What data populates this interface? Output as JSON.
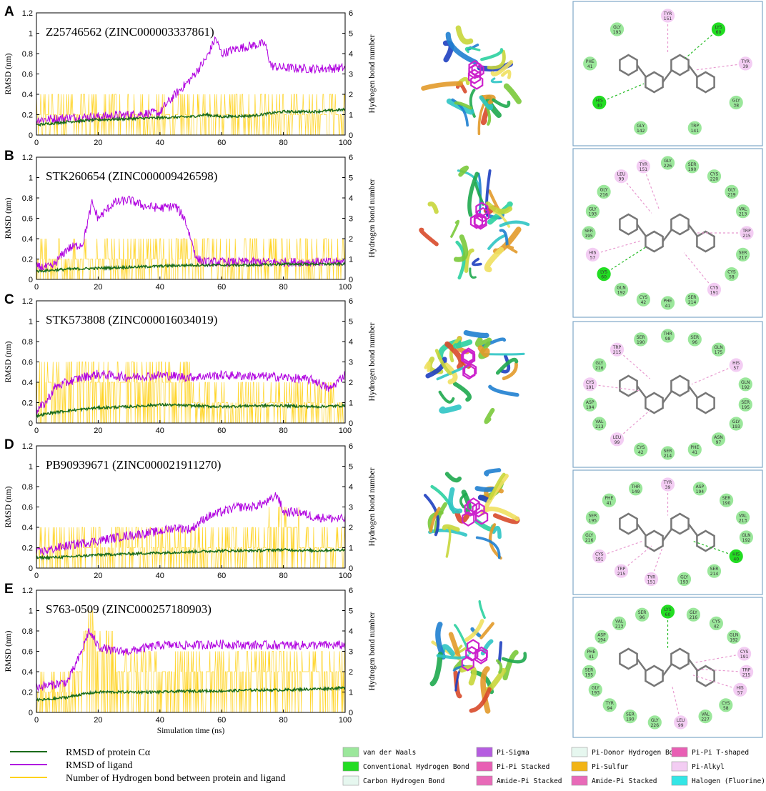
{
  "panel_letters": [
    "A",
    "B",
    "C",
    "D",
    "E"
  ],
  "axis_labels": {
    "y_left": "RMSD (nm)",
    "y_right": "Hydrogen bond number",
    "x": "Simulation time (ns)"
  },
  "colors": {
    "protein": "#1a6b1a",
    "ligand": "#b000e0",
    "hbond": "#ffd21a",
    "vdw": "#9be79b",
    "conventional_hb": "#22dd22",
    "pi_alkyl": "#f3cdf3",
    "pi_sigma": "#b55de0",
    "pi_pi_tshaped": "#e85fb4",
    "pi_sulfur": "#f2b415",
    "halogen": "#33e6e6",
    "carbon_hb": "#e6f7ef"
  },
  "chart_data": [
    {
      "type": "line",
      "panel": "A",
      "title": "Z25746562 (ZINC000003337861)",
      "xlabel": "",
      "ylabel": "RMSD (nm)",
      "y2label": "Hydrogen bond number",
      "xlim": [
        0,
        100
      ],
      "ylim": [
        0,
        1.2
      ],
      "y2lim": [
        0,
        6
      ],
      "xticks": [
        0,
        20,
        40,
        60,
        80,
        100
      ],
      "yticks": [
        0,
        0.2,
        0.4,
        0.6,
        0.8,
        1,
        1.2
      ],
      "y2ticks": [
        0,
        1,
        2,
        3,
        4,
        5,
        6
      ],
      "series": [
        {
          "name": "RMSD of protein Cα",
          "x": [
            0,
            10,
            20,
            30,
            40,
            50,
            55,
            60,
            70,
            80,
            90,
            100
          ],
          "values": [
            0.1,
            0.13,
            0.15,
            0.16,
            0.17,
            0.18,
            0.2,
            0.18,
            0.19,
            0.23,
            0.23,
            0.25
          ]
        },
        {
          "name": "RMSD of ligand",
          "x": [
            0,
            10,
            20,
            30,
            40,
            42,
            45,
            50,
            55,
            58,
            60,
            65,
            70,
            74,
            76,
            80,
            90,
            100
          ],
          "values": [
            0.15,
            0.17,
            0.18,
            0.2,
            0.22,
            0.3,
            0.4,
            0.55,
            0.75,
            0.95,
            0.8,
            0.85,
            0.88,
            0.9,
            0.68,
            0.66,
            0.65,
            0.66
          ]
        },
        {
          "name": "Number of Hydrogen bond between protein and ligand",
          "x": [
            0,
            10,
            20,
            30,
            40,
            45,
            50,
            60,
            70,
            72,
            80,
            90,
            100
          ],
          "values": [
            1,
            1,
            1,
            1,
            1,
            0.5,
            0.5,
            0.5,
            1,
            0.5,
            0.5,
            0.5,
            0.5
          ]
        }
      ]
    },
    {
      "type": "line",
      "panel": "B",
      "title": "STK260654 (ZINC000009426598)",
      "xlabel": "",
      "ylabel": "RMSD (nm)",
      "y2label": "Hydrogen bond number",
      "xlim": [
        0,
        100
      ],
      "ylim": [
        0,
        1.2
      ],
      "y2lim": [
        0,
        6
      ],
      "xticks": [
        0,
        20,
        40,
        60,
        80,
        100
      ],
      "yticks": [
        0,
        0.2,
        0.4,
        0.6,
        0.8,
        1,
        1.2
      ],
      "y2ticks": [
        0,
        1,
        2,
        3,
        4,
        5,
        6
      ],
      "series": [
        {
          "name": "RMSD of protein Cα",
          "x": [
            0,
            10,
            20,
            30,
            40,
            50,
            60,
            70,
            80,
            90,
            100
          ],
          "values": [
            0.08,
            0.1,
            0.11,
            0.12,
            0.13,
            0.14,
            0.14,
            0.14,
            0.15,
            0.15,
            0.15
          ]
        },
        {
          "name": "RMSD of ligand",
          "x": [
            0,
            5,
            10,
            15,
            18,
            20,
            25,
            30,
            35,
            40,
            45,
            48,
            52,
            55,
            60,
            70,
            80,
            90,
            100
          ],
          "values": [
            0.12,
            0.12,
            0.3,
            0.35,
            0.75,
            0.6,
            0.75,
            0.78,
            0.72,
            0.7,
            0.72,
            0.6,
            0.2,
            0.17,
            0.17,
            0.17,
            0.17,
            0.17,
            0.17
          ]
        },
        {
          "name": "Number of Hydrogen bond between protein and ligand",
          "x": [
            0,
            10,
            20,
            30,
            40,
            50,
            60,
            70,
            80,
            90,
            100
          ],
          "values": [
            1,
            0.5,
            0.5,
            0.5,
            0.5,
            0.5,
            0.5,
            0.5,
            0.5,
            0.5,
            0.5
          ]
        }
      ]
    },
    {
      "type": "line",
      "panel": "C",
      "title": "STK573808 (ZINC000016034019)",
      "xlabel": "",
      "ylabel": "RMSD (nm)",
      "y2label": "Hydrogen bond number",
      "xlim": [
        0,
        100
      ],
      "ylim": [
        0,
        1.2
      ],
      "y2lim": [
        0,
        6
      ],
      "xticks": [
        0,
        20,
        40,
        60,
        80,
        100
      ],
      "yticks": [
        0,
        0.2,
        0.4,
        0.6,
        0.8,
        1,
        1.2
      ],
      "y2ticks": [
        0,
        1,
        2,
        3,
        4,
        5,
        6
      ],
      "series": [
        {
          "name": "RMSD of protein Cα",
          "x": [
            0,
            5,
            10,
            20,
            30,
            40,
            50,
            60,
            70,
            80,
            90,
            100
          ],
          "values": [
            0.07,
            0.1,
            0.12,
            0.15,
            0.16,
            0.18,
            0.17,
            0.16,
            0.17,
            0.17,
            0.16,
            0.17
          ]
        },
        {
          "name": "RMSD of ligand",
          "x": [
            0,
            3,
            6,
            10,
            15,
            20,
            30,
            40,
            50,
            60,
            70,
            80,
            90,
            95,
            100
          ],
          "values": [
            0.12,
            0.2,
            0.35,
            0.4,
            0.45,
            0.48,
            0.45,
            0.47,
            0.45,
            0.47,
            0.46,
            0.45,
            0.42,
            0.33,
            0.48
          ]
        },
        {
          "name": "Number of Hydrogen bond between protein and ligand",
          "x": [
            0,
            10,
            20,
            30,
            40,
            50,
            60,
            70,
            80,
            90,
            100
          ],
          "values": [
            2,
            2,
            1.5,
            2,
            2.5,
            1.5,
            1,
            1.5,
            1,
            1,
            1
          ]
        }
      ]
    },
    {
      "type": "line",
      "panel": "D",
      "title": "PB90939671 (ZINC000021911270)",
      "xlabel": "",
      "ylabel": "RMSD (nm)",
      "y2label": "Hydrogen bond number",
      "xlim": [
        0,
        100
      ],
      "ylim": [
        0,
        1.2
      ],
      "y2lim": [
        0,
        6
      ],
      "xticks": [
        0,
        20,
        40,
        60,
        80,
        100
      ],
      "yticks": [
        0,
        0.2,
        0.4,
        0.6,
        0.8,
        1,
        1.2
      ],
      "y2ticks": [
        0,
        1,
        2,
        3,
        4,
        5,
        6
      ],
      "series": [
        {
          "name": "RMSD of protein Cα",
          "x": [
            0,
            10,
            20,
            30,
            40,
            50,
            60,
            70,
            80,
            90,
            100
          ],
          "values": [
            0.1,
            0.11,
            0.13,
            0.14,
            0.15,
            0.16,
            0.17,
            0.17,
            0.18,
            0.17,
            0.18
          ]
        },
        {
          "name": "RMSD of ligand",
          "x": [
            0,
            10,
            20,
            30,
            40,
            45,
            50,
            55,
            60,
            65,
            70,
            75,
            78,
            80,
            85,
            90,
            100
          ],
          "values": [
            0.15,
            0.22,
            0.27,
            0.32,
            0.36,
            0.4,
            0.38,
            0.5,
            0.55,
            0.6,
            0.6,
            0.65,
            0.72,
            0.55,
            0.55,
            0.5,
            0.48
          ]
        },
        {
          "name": "Number of Hydrogen bond between protein and ligand",
          "x": [
            0,
            10,
            20,
            30,
            40,
            50,
            60,
            70,
            80,
            90,
            100
          ],
          "values": [
            1.5,
            1,
            1,
            1,
            1,
            1,
            1,
            1,
            2,
            1,
            1
          ]
        }
      ]
    },
    {
      "type": "line",
      "panel": "E",
      "title": "S763-0509 (ZINC000257180903)",
      "xlabel": "Simulation time (ns)",
      "ylabel": "RMSD (nm)",
      "y2label": "Hydrogen bond number",
      "xlim": [
        0,
        100
      ],
      "ylim": [
        0,
        1.2
      ],
      "y2lim": [
        0,
        6
      ],
      "xticks": [
        0,
        20,
        40,
        60,
        80,
        100
      ],
      "yticks": [
        0,
        0.2,
        0.4,
        0.6,
        0.8,
        1,
        1.2
      ],
      "y2ticks": [
        0,
        1,
        2,
        3,
        4,
        5,
        6
      ],
      "series": [
        {
          "name": "RMSD of protein Cα",
          "x": [
            0,
            5,
            10,
            15,
            20,
            30,
            40,
            50,
            60,
            70,
            80,
            90,
            100
          ],
          "values": [
            0.12,
            0.13,
            0.15,
            0.18,
            0.2,
            0.2,
            0.2,
            0.21,
            0.21,
            0.22,
            0.22,
            0.23,
            0.24
          ]
        },
        {
          "name": "RMSD of ligand",
          "x": [
            0,
            5,
            10,
            14,
            17,
            20,
            25,
            30,
            40,
            50,
            60,
            70,
            80,
            90,
            100
          ],
          "values": [
            0.25,
            0.27,
            0.3,
            0.55,
            0.8,
            0.65,
            0.6,
            0.6,
            0.66,
            0.66,
            0.67,
            0.66,
            0.66,
            0.66,
            0.66
          ]
        },
        {
          "name": "Number of Hydrogen bond between protein and ligand",
          "x": [
            0,
            10,
            15,
            17,
            20,
            30,
            40,
            50,
            60,
            70,
            80,
            90,
            100
          ],
          "values": [
            1.5,
            1,
            2.5,
            4.5,
            3,
            2,
            2,
            2,
            1.5,
            1.5,
            1.5,
            1.5,
            1.5
          ]
        }
      ]
    }
  ],
  "interaction_panels": [
    {
      "residues": [
        "TYR 151",
        "LYS 60",
        "TYR 39",
        "GLY 38",
        "TRP 141",
        "GLY 142",
        "HIS 40",
        "PHE 41",
        "GLY 193"
      ]
    },
    {
      "residues": [
        "GLY 226",
        "SER 190",
        "CYS 220",
        "GLY 219",
        "VAL 213",
        "TRP 215",
        "SER 217",
        "CYS 58",
        "CYS 191",
        "SER 214",
        "PHE 41",
        "CYS 42",
        "GLN 192",
        "LYS 60",
        "HIS 57",
        "SER 195",
        "GLY 193",
        "GLY 216",
        "LEU 99",
        "TYR 151"
      ]
    },
    {
      "residues": [
        "THR 98",
        "SER 96",
        "GLN 175",
        "HIS 57",
        "GLN 192",
        "SER 195",
        "GLY 193",
        "ASN 97",
        "PHE 41",
        "SER 214",
        "CYS 42",
        "LEU 99",
        "VAL 213",
        "ASP 194",
        "CYS 191",
        "GLY 216",
        "TRP 215",
        "SER 190"
      ]
    },
    {
      "residues": [
        "TYR 39",
        "ASP 194",
        "SER 190",
        "VAL 213",
        "GLN 192",
        "HIS 40",
        "SER 214",
        "GLY 193",
        "TYR 151",
        "TRP 215",
        "CYS 191",
        "GLY 216",
        "SER 195",
        "PHE 41",
        "THR 149"
      ]
    },
    {
      "residues": [
        "LYS 60",
        "GLY 216",
        "CYS 42",
        "GLN 192",
        "CYS 191",
        "TRP 215",
        "HIS 57",
        "CYS 58",
        "VAL 227",
        "LEU 99",
        "GLY 226",
        "SER 190",
        "TYR 94",
        "GLY 193",
        "SER 195",
        "PHE 41",
        "ASP 194",
        "VAL 213",
        "SER 96"
      ]
    }
  ],
  "legend_left": [
    {
      "label": "RMSD of protein Cα",
      "color": "#1a6b1a"
    },
    {
      "label": "RMSD of ligand",
      "color": "#b000e0"
    },
    {
      "label": "Number of Hydrogen bond between protein and ligand",
      "color": "#ffd21a"
    }
  ],
  "legend_interactions": [
    {
      "label": "van der Waals",
      "color": "#9be79b"
    },
    {
      "label": "Conventional Hydrogen Bond",
      "color": "#22dd22"
    },
    {
      "label": "Carbon Hydrogen Bond",
      "color": "#e6f7ef"
    },
    {
      "label": "Pi-Sigma",
      "color": "#b55de0"
    },
    {
      "label": "Pi-Pi Stacked",
      "color": "#e85fb4"
    },
    {
      "label": "Amide-Pi Stacked",
      "color": "#e86ab8"
    },
    {
      "label": "Pi-Donor Hydrogen Bond",
      "color": "#e6f7ef"
    },
    {
      "label": "Pi-Sulfur",
      "color": "#f2b415"
    },
    {
      "label": "Amide-Pi Stacked",
      "color": "#e86ab8"
    },
    {
      "label": "Pi-Pi T-shaped",
      "color": "#e85fb4"
    },
    {
      "label": "Pi-Alkyl",
      "color": "#f3cdf3"
    },
    {
      "label": "Halogen (Fluorine)",
      "color": "#33e6e6"
    }
  ]
}
